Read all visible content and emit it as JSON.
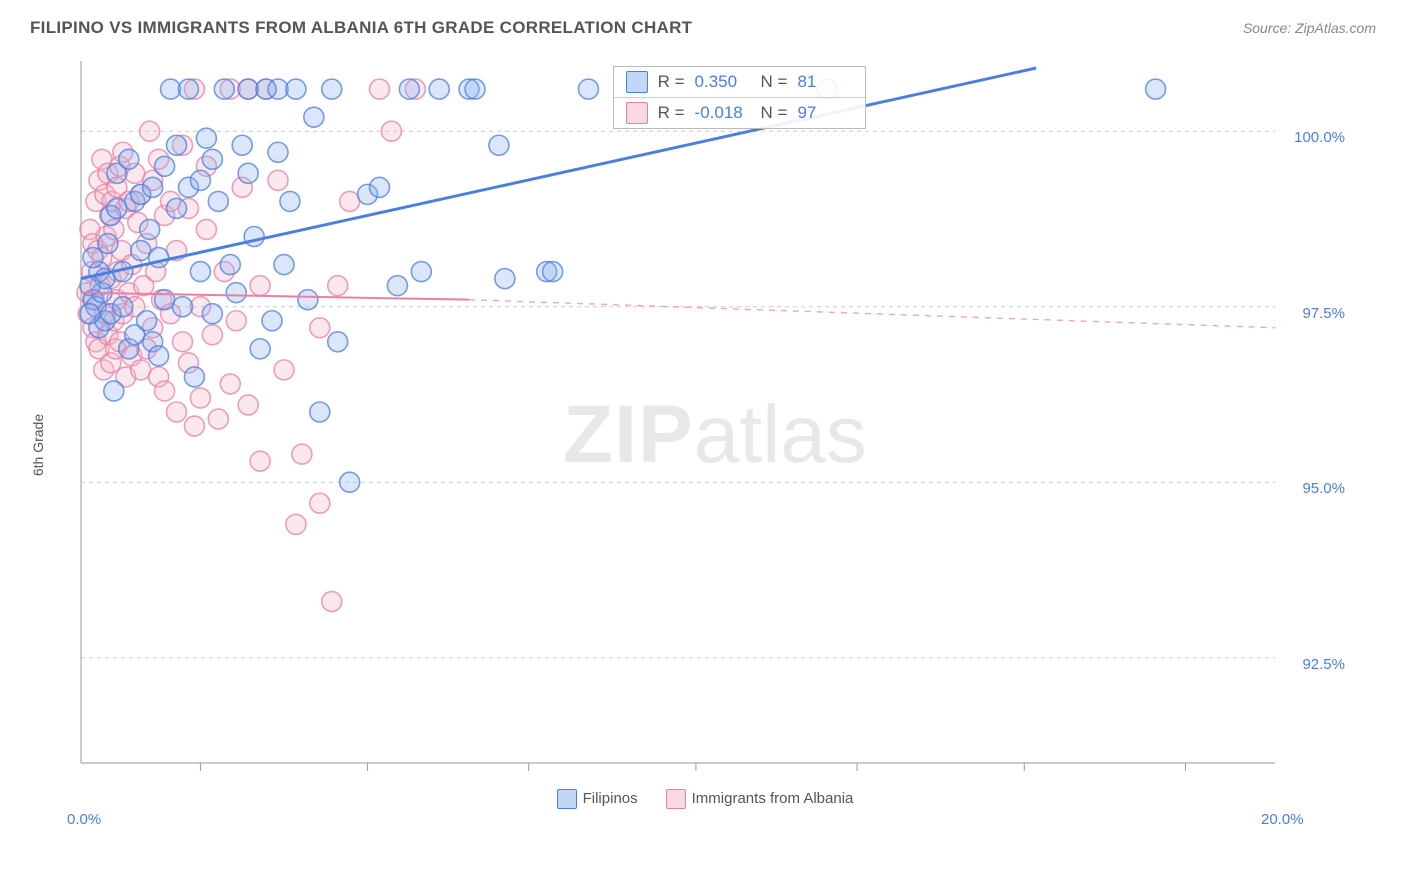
{
  "header": {
    "title": "FILIPINO VS IMMIGRANTS FROM ALBANIA 6TH GRADE CORRELATION CHART",
    "source": "Source: ZipAtlas.com"
  },
  "ylabel": "6th Grade",
  "watermark": {
    "prefix": "ZIP",
    "suffix": "atlas"
  },
  "chart": {
    "type": "scatter",
    "xlim": [
      0,
      20
    ],
    "ylim": [
      91.0,
      101.0
    ],
    "xticks": [
      2.0,
      4.8,
      7.5,
      10.3,
      13.0,
      15.8,
      18.5
    ],
    "xticklabels": [
      {
        "pos": 0.0,
        "label": "0.0%"
      },
      {
        "pos": 20.0,
        "label": "20.0%"
      }
    ],
    "yticks": [
      {
        "v": 92.5,
        "label": "92.5%"
      },
      {
        "v": 95.0,
        "label": "95.0%"
      },
      {
        "v": 97.5,
        "label": "97.5%"
      },
      {
        "v": 100.0,
        "label": "100.0%"
      }
    ],
    "grid_color": "#cccccc",
    "axis_color": "#999999",
    "marker_radius": 10,
    "marker_stroke_width": 1.6,
    "marker_fill_opacity": 0.32,
    "background_color": "#ffffff",
    "series": [
      {
        "id": "filipinos",
        "label": "Filipinos",
        "color_stroke": "#4a7fe0",
        "color_fill": "#8fb2ee",
        "swatch_fill": "#c3d6f6",
        "swatch_border": "#4a7fe0",
        "R": "0.350",
        "N": "81",
        "trend": {
          "x0": 0.0,
          "y0": 97.9,
          "x1": 16.0,
          "y1": 100.9,
          "dash_after_x": 16.0,
          "width": 3
        },
        "points": [
          [
            0.2,
            97.6
          ],
          [
            0.25,
            97.5
          ],
          [
            0.3,
            98.0
          ],
          [
            0.3,
            97.2
          ],
          [
            0.35,
            97.7
          ],
          [
            0.4,
            97.3
          ],
          [
            0.4,
            97.9
          ],
          [
            0.45,
            98.4
          ],
          [
            0.5,
            98.8
          ],
          [
            0.5,
            97.4
          ],
          [
            0.55,
            96.3
          ],
          [
            0.6,
            98.9
          ],
          [
            0.6,
            99.4
          ],
          [
            0.7,
            98.0
          ],
          [
            0.7,
            97.5
          ],
          [
            0.8,
            99.6
          ],
          [
            0.8,
            96.9
          ],
          [
            0.9,
            97.1
          ],
          [
            0.9,
            99.0
          ],
          [
            1.0,
            98.3
          ],
          [
            1.0,
            99.1
          ],
          [
            1.1,
            97.3
          ],
          [
            1.15,
            98.6
          ],
          [
            1.2,
            99.2
          ],
          [
            1.2,
            97.0
          ],
          [
            1.3,
            96.8
          ],
          [
            1.3,
            98.2
          ],
          [
            1.4,
            99.5
          ],
          [
            1.4,
            97.6
          ],
          [
            1.5,
            100.6
          ],
          [
            1.6,
            98.9
          ],
          [
            1.6,
            99.8
          ],
          [
            1.7,
            97.5
          ],
          [
            1.8,
            100.6
          ],
          [
            1.8,
            99.2
          ],
          [
            1.9,
            96.5
          ],
          [
            2.0,
            99.3
          ],
          [
            2.0,
            98.0
          ],
          [
            2.1,
            99.9
          ],
          [
            2.2,
            97.4
          ],
          [
            2.2,
            99.6
          ],
          [
            2.3,
            99.0
          ],
          [
            2.4,
            100.6
          ],
          [
            2.5,
            98.1
          ],
          [
            2.6,
            97.7
          ],
          [
            2.7,
            99.8
          ],
          [
            2.8,
            100.6
          ],
          [
            2.8,
            99.4
          ],
          [
            2.9,
            98.5
          ],
          [
            3.0,
            96.9
          ],
          [
            3.1,
            100.6
          ],
          [
            3.2,
            97.3
          ],
          [
            3.3,
            99.7
          ],
          [
            3.3,
            100.6
          ],
          [
            3.4,
            98.1
          ],
          [
            3.5,
            99.0
          ],
          [
            3.6,
            100.6
          ],
          [
            3.8,
            97.6
          ],
          [
            3.9,
            100.2
          ],
          [
            4.0,
            96.0
          ],
          [
            4.2,
            100.6
          ],
          [
            4.3,
            97.0
          ],
          [
            4.5,
            95.0
          ],
          [
            4.8,
            99.1
          ],
          [
            5.0,
            99.2
          ],
          [
            5.3,
            97.8
          ],
          [
            5.5,
            100.6
          ],
          [
            5.7,
            98.0
          ],
          [
            6.0,
            100.6
          ],
          [
            6.5,
            100.6
          ],
          [
            6.6,
            100.6
          ],
          [
            7.0,
            99.8
          ],
          [
            7.1,
            97.9
          ],
          [
            7.8,
            98.0
          ],
          [
            7.9,
            98.0
          ],
          [
            8.5,
            100.6
          ],
          [
            12.5,
            100.6
          ],
          [
            18.0,
            100.6
          ],
          [
            0.15,
            97.4
          ],
          [
            0.2,
            98.2
          ],
          [
            0.15,
            97.8
          ]
        ]
      },
      {
        "id": "albania",
        "label": "Immigrants from Albania",
        "color_stroke": "#e97fa1",
        "color_fill": "#f4b7c9",
        "swatch_fill": "#fbd9e3",
        "swatch_border": "#e97fa1",
        "R": "-0.018",
        "N": "97",
        "trend": {
          "x0": 0.0,
          "y0": 97.7,
          "x1": 6.5,
          "y1": 97.6,
          "dash_after_x": 6.5,
          "dash_x2": 20.0,
          "dash_y2": 97.2,
          "width": 2
        },
        "points": [
          [
            0.1,
            97.7
          ],
          [
            0.12,
            97.4
          ],
          [
            0.15,
            98.6
          ],
          [
            0.18,
            98.0
          ],
          [
            0.2,
            97.2
          ],
          [
            0.2,
            98.4
          ],
          [
            0.22,
            97.6
          ],
          [
            0.25,
            99.0
          ],
          [
            0.25,
            97.0
          ],
          [
            0.28,
            98.3
          ],
          [
            0.3,
            96.9
          ],
          [
            0.3,
            99.3
          ],
          [
            0.32,
            97.8
          ],
          [
            0.35,
            99.6
          ],
          [
            0.35,
            98.2
          ],
          [
            0.38,
            96.6
          ],
          [
            0.4,
            97.4
          ],
          [
            0.4,
            99.1
          ],
          [
            0.42,
            98.5
          ],
          [
            0.45,
            97.1
          ],
          [
            0.45,
            99.4
          ],
          [
            0.48,
            98.8
          ],
          [
            0.5,
            96.7
          ],
          [
            0.5,
            97.9
          ],
          [
            0.52,
            99.0
          ],
          [
            0.55,
            97.3
          ],
          [
            0.55,
            98.6
          ],
          [
            0.58,
            96.9
          ],
          [
            0.6,
            99.2
          ],
          [
            0.6,
            97.6
          ],
          [
            0.62,
            98.0
          ],
          [
            0.65,
            99.5
          ],
          [
            0.65,
            97.0
          ],
          [
            0.68,
            98.3
          ],
          [
            0.7,
            97.4
          ],
          [
            0.7,
            99.7
          ],
          [
            0.75,
            98.9
          ],
          [
            0.75,
            96.5
          ],
          [
            0.8,
            97.7
          ],
          [
            0.8,
            99.0
          ],
          [
            0.85,
            98.1
          ],
          [
            0.85,
            96.8
          ],
          [
            0.9,
            99.4
          ],
          [
            0.9,
            97.5
          ],
          [
            0.95,
            98.7
          ],
          [
            1.0,
            96.6
          ],
          [
            1.0,
            99.1
          ],
          [
            1.05,
            97.8
          ],
          [
            1.1,
            98.4
          ],
          [
            1.1,
            96.9
          ],
          [
            1.15,
            100.0
          ],
          [
            1.2,
            97.2
          ],
          [
            1.2,
            99.3
          ],
          [
            1.25,
            98.0
          ],
          [
            1.3,
            96.5
          ],
          [
            1.3,
            99.6
          ],
          [
            1.35,
            97.6
          ],
          [
            1.4,
            98.8
          ],
          [
            1.4,
            96.3
          ],
          [
            1.5,
            99.0
          ],
          [
            1.5,
            97.4
          ],
          [
            1.6,
            96.0
          ],
          [
            1.6,
            98.3
          ],
          [
            1.7,
            97.0
          ],
          [
            1.7,
            99.8
          ],
          [
            1.8,
            96.7
          ],
          [
            1.8,
            98.9
          ],
          [
            1.9,
            95.8
          ],
          [
            1.9,
            100.6
          ],
          [
            2.0,
            97.5
          ],
          [
            2.0,
            96.2
          ],
          [
            2.1,
            98.6
          ],
          [
            2.1,
            99.5
          ],
          [
            2.2,
            97.1
          ],
          [
            2.3,
            95.9
          ],
          [
            2.4,
            98.0
          ],
          [
            2.5,
            96.4
          ],
          [
            2.5,
            100.6
          ],
          [
            2.6,
            97.3
          ],
          [
            2.7,
            99.2
          ],
          [
            2.8,
            96.1
          ],
          [
            2.8,
            100.6
          ],
          [
            3.0,
            95.3
          ],
          [
            3.0,
            97.8
          ],
          [
            3.1,
            100.6
          ],
          [
            3.3,
            99.3
          ],
          [
            3.4,
            96.6
          ],
          [
            3.6,
            94.4
          ],
          [
            3.7,
            95.4
          ],
          [
            4.0,
            97.2
          ],
          [
            4.0,
            94.7
          ],
          [
            4.2,
            93.3
          ],
          [
            4.3,
            97.8
          ],
          [
            4.5,
            99.0
          ],
          [
            5.0,
            100.6
          ],
          [
            5.2,
            100.0
          ],
          [
            5.6,
            100.6
          ]
        ]
      }
    ],
    "stats_box": {
      "left_pct": 42,
      "top_pct": 1.5
    }
  }
}
